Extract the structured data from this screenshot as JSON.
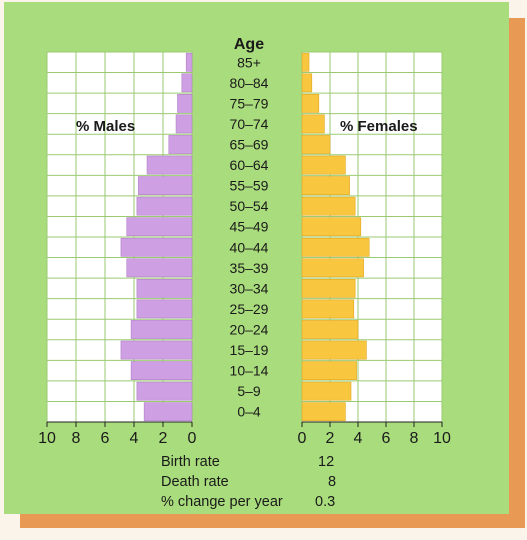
{
  "chart_data": {
    "type": "bar",
    "title": "Age",
    "left_label": "% Males",
    "right_label": "% Females",
    "age_groups": [
      "85+",
      "80–84",
      "75–79",
      "70–74",
      "65–69",
      "60–64",
      "55–59",
      "50–54",
      "45–49",
      "40–44",
      "35–39",
      "30–34",
      "25–29",
      "20–24",
      "15–19",
      "10–14",
      "5–9",
      "0–4"
    ],
    "series": [
      {
        "name": "% Males",
        "values": [
          0.4,
          0.7,
          1.0,
          1.1,
          1.6,
          3.1,
          3.7,
          3.8,
          4.5,
          4.9,
          4.5,
          3.8,
          3.8,
          4.2,
          4.9,
          4.2,
          3.8,
          3.3
        ]
      },
      {
        "name": "% Females",
        "values": [
          0.5,
          0.7,
          1.2,
          1.6,
          2.0,
          3.1,
          3.4,
          3.8,
          4.2,
          4.8,
          4.4,
          3.8,
          3.7,
          4.0,
          4.6,
          3.9,
          3.5,
          3.1
        ]
      }
    ],
    "xlim": [
      0,
      10
    ],
    "male_ticks": [
      "10",
      "8",
      "6",
      "4",
      "2",
      "0"
    ],
    "female_ticks": [
      "0",
      "2",
      "4",
      "6",
      "8",
      "10"
    ],
    "grid": true,
    "colors": {
      "male": "#cf9fe3",
      "female": "#f9c63f",
      "panel": "#ffffff",
      "background": "#a9dc7c",
      "card_shadow": "#e89a55"
    }
  },
  "stats": [
    {
      "label": "Birth rate",
      "value": "12"
    },
    {
      "label": "Death rate",
      "value": "8"
    },
    {
      "label": "% change per year",
      "value": "0.3"
    }
  ]
}
